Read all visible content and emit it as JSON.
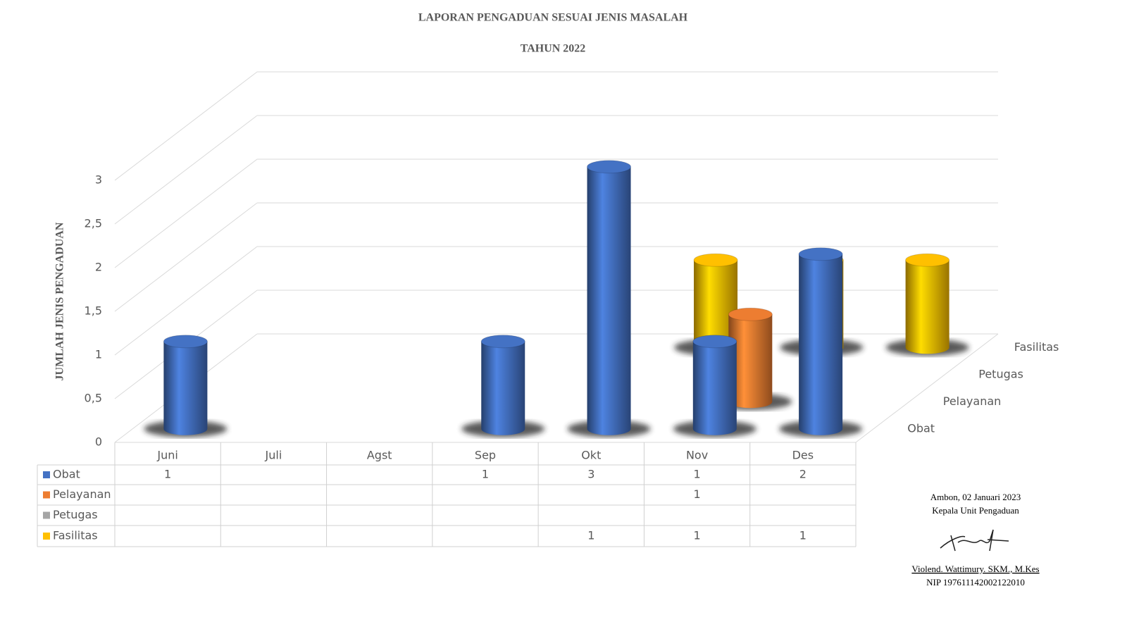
{
  "chart_data": {
    "type": "bar3d",
    "title": "LAPORAN PENGADUAN SESUAI JENIS MASALAH",
    "subtitle": "TAHUN 2022",
    "y_label": "JUMLAH JENIS PENGADUAN",
    "categories": [
      "Juni",
      "Juli",
      "Agst",
      "Sep",
      "Okt",
      "Nov",
      "Des"
    ],
    "series": [
      {
        "name": "Obat",
        "color": "#4472c4",
        "values": [
          1,
          null,
          null,
          1,
          3,
          1,
          2
        ]
      },
      {
        "name": "Pelayanan",
        "color": "#ed7d31",
        "values": [
          null,
          null,
          null,
          null,
          null,
          1,
          null
        ]
      },
      {
        "name": "Petugas",
        "color": "#a5a5a5",
        "values": [
          null,
          null,
          null,
          null,
          null,
          null,
          null
        ]
      },
      {
        "name": "Fasilitas",
        "color": "#ffc000",
        "values": [
          null,
          null,
          null,
          null,
          1,
          1,
          1
        ]
      }
    ],
    "ylim": [
      0,
      3
    ],
    "yticks": [
      0,
      {
        "value": 0.5,
        "label": "0,5"
      },
      1,
      {
        "value": 1.5,
        "label": "1,5"
      },
      2,
      {
        "value": 2.5,
        "label": "2,5"
      },
      3
    ],
    "grid": true,
    "data_table": true
  },
  "signature": {
    "place_date": "Ambon, 02 Januari 2023",
    "position": "Kepala Unit Pengaduan",
    "name": "Violend. Wattimury. SKM., M.Kes",
    "nip": "NIP 197611142002122010"
  }
}
